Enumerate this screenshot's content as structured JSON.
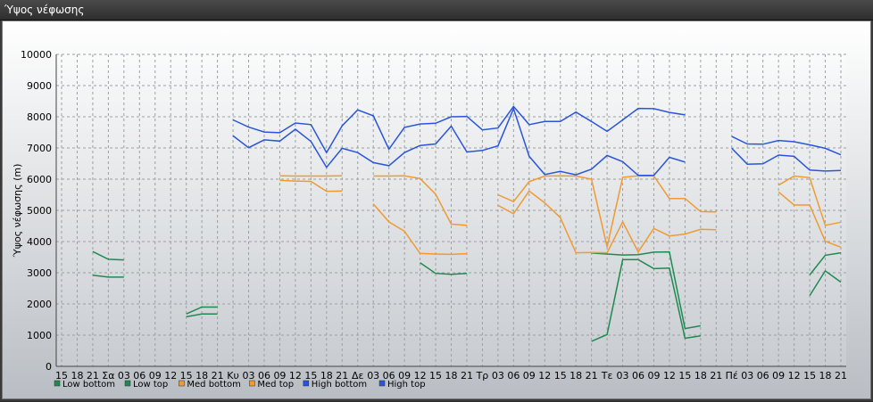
{
  "window": {
    "title": "Ύψος νέφωσης"
  },
  "colors": {
    "low": "#1e8a50",
    "med": "#f09a30",
    "high": "#2a55d8"
  },
  "chart_data": {
    "type": "line",
    "title": "",
    "xlabel": "",
    "ylabel": "Ύψος νέφωσης (m)",
    "ylim": [
      0,
      10000
    ],
    "yticks": [
      0,
      1000,
      2000,
      3000,
      4000,
      5000,
      6000,
      7000,
      8000,
      9000,
      10000
    ],
    "grid": true,
    "legend_position": "bottom-left",
    "categories": [
      "15",
      "18",
      "21",
      "Σα",
      "03",
      "06",
      "09",
      "12",
      "15",
      "18",
      "21",
      "Κυ",
      "03",
      "06",
      "09",
      "12",
      "15",
      "18",
      "21",
      "Δε",
      "03",
      "06",
      "09",
      "12",
      "15",
      "18",
      "21",
      "Τρ",
      "03",
      "06",
      "09",
      "12",
      "15",
      "18",
      "21",
      "Τε",
      "03",
      "06",
      "09",
      "12",
      "15",
      "18",
      "21",
      "Πέ",
      "03",
      "06",
      "09",
      "12",
      "15",
      "18",
      "21"
    ],
    "series": [
      {
        "name": "Low bottom",
        "color": "#1e8a50",
        "values": [
          null,
          null,
          2920,
          2860,
          2860,
          null,
          null,
          null,
          1590,
          1680,
          1680,
          null,
          null,
          null,
          null,
          null,
          null,
          null,
          null,
          null,
          null,
          null,
          null,
          3320,
          2980,
          2950,
          2980,
          null,
          null,
          null,
          null,
          null,
          null,
          null,
          800,
          1020,
          3420,
          3420,
          3130,
          3150,
          900,
          980,
          null,
          null,
          null,
          null,
          null,
          null,
          2270,
          3060,
          2700
        ]
      },
      {
        "name": "Low top",
        "color": "#1e8a50",
        "values": [
          null,
          null,
          3680,
          3430,
          3410,
          null,
          null,
          null,
          1680,
          1900,
          1900,
          null,
          null,
          null,
          null,
          null,
          null,
          null,
          null,
          null,
          null,
          null,
          null,
          null,
          null,
          null,
          null,
          null,
          null,
          null,
          null,
          null,
          null,
          null,
          3630,
          3600,
          3570,
          3580,
          3660,
          3670,
          1210,
          1300,
          null,
          null,
          null,
          null,
          null,
          null,
          2930,
          3560,
          3640
        ]
      },
      {
        "name": "Med bottom",
        "color": "#f09a30",
        "values": [
          null,
          null,
          null,
          null,
          null,
          null,
          null,
          null,
          null,
          null,
          null,
          null,
          null,
          null,
          5960,
          5940,
          5930,
          5610,
          5620,
          null,
          5210,
          4630,
          4330,
          3620,
          3600,
          3590,
          3610,
          null,
          5160,
          4890,
          5620,
          5240,
          4770,
          3640,
          3650,
          3640,
          4630,
          3670,
          4420,
          4180,
          4240,
          4390,
          4380,
          null,
          null,
          null,
          5590,
          5170,
          5170,
          4010,
          3820
        ]
      },
      {
        "name": "Med top",
        "color": "#f09a30",
        "values": [
          null,
          null,
          null,
          null,
          null,
          null,
          null,
          null,
          null,
          null,
          null,
          null,
          null,
          null,
          6110,
          6100,
          6100,
          6100,
          6110,
          null,
          6100,
          6100,
          6110,
          6020,
          5520,
          4560,
          4520,
          null,
          5500,
          5280,
          5920,
          6100,
          6110,
          6100,
          6000,
          3830,
          6060,
          6110,
          6100,
          5380,
          5380,
          4960,
          4950,
          null,
          null,
          null,
          5810,
          6100,
          6050,
          4520,
          4620
        ]
      },
      {
        "name": "High bottom",
        "color": "#2a55d8",
        "values": [
          null,
          null,
          null,
          null,
          null,
          null,
          null,
          null,
          null,
          null,
          null,
          7390,
          7010,
          7260,
          7220,
          7600,
          7210,
          6380,
          6990,
          6850,
          6530,
          6430,
          6850,
          7080,
          7130,
          7700,
          6870,
          6920,
          7070,
          8260,
          6730,
          6150,
          6250,
          6140,
          6320,
          6760,
          6560,
          6120,
          6120,
          6700,
          6550,
          null,
          null,
          6990,
          6480,
          6490,
          6770,
          6730,
          6290,
          6260,
          6280
        ]
      },
      {
        "name": "High top",
        "color": "#2a55d8",
        "values": [
          null,
          null,
          null,
          null,
          null,
          null,
          null,
          null,
          null,
          null,
          null,
          7900,
          7670,
          7510,
          7490,
          7800,
          7750,
          6850,
          7710,
          8220,
          8030,
          6960,
          7660,
          7770,
          7790,
          8000,
          8010,
          7580,
          7640,
          8330,
          7750,
          7850,
          7850,
          8150,
          7850,
          7530,
          7900,
          8270,
          8260,
          8140,
          8060,
          null,
          null,
          7370,
          7130,
          7120,
          7240,
          7200,
          7100,
          6990,
          6780
        ]
      }
    ]
  }
}
